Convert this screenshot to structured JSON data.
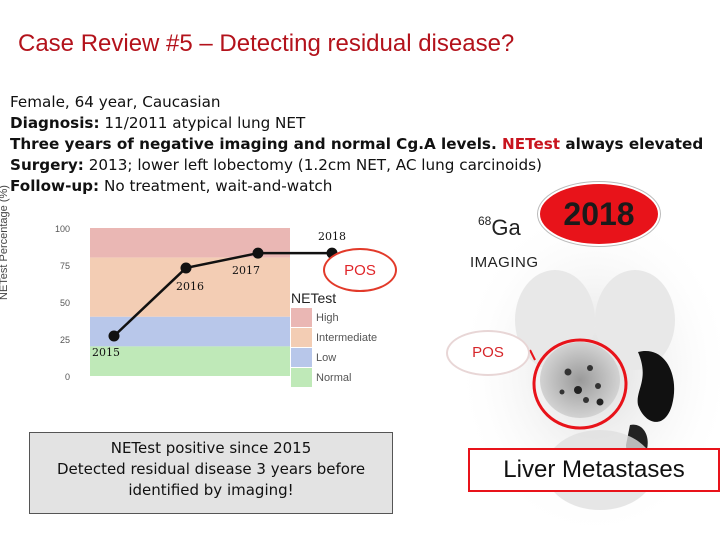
{
  "slide": {
    "title": "Case Review #5 – Detecting residual disease?",
    "facts": {
      "line1": "Female, 64 year, Caucasian",
      "line2_label": "Diagnosis:",
      "line2_value": " 11/2011 atypical lung NET",
      "line3_pre": "Three years of negative imaging and normal Cg.A levels. ",
      "line3_red": "NETest",
      "line3_post": " always elevated",
      "line4_label": "Surgery:",
      "line4_value": " 2013; lower left lobectomy (1.2cm NET, AC lung carcinoids)",
      "line5_label": "Follow-up:",
      "line5_value": " No treatment, wait-and-watch"
    },
    "summary": {
      "line1": "NETest positive since 2015",
      "line2": "Detected residual disease 3 years before",
      "line3": "identified by imaging!"
    }
  },
  "chart_data": {
    "type": "line",
    "ylabel": "NETest Percentage (%)",
    "ylim": [
      0,
      100
    ],
    "yticks": [
      0,
      25,
      50,
      75,
      100
    ],
    "points": [
      {
        "label": "2015",
        "value": 27
      },
      {
        "label": "2016",
        "value": 73
      },
      {
        "label": "2017",
        "value": 83
      },
      {
        "label": "2018",
        "value": 83
      }
    ],
    "bands": [
      {
        "name": "High",
        "from": 80,
        "to": 100,
        "color": "#eab7b4"
      },
      {
        "name": "Intermediate",
        "from": 40,
        "to": 80,
        "color": "#f3cdb4"
      },
      {
        "name": "Low",
        "from": 20,
        "to": 40,
        "color": "#b8c7ea"
      },
      {
        "name": "Normal",
        "from": 0,
        "to": 20,
        "color": "#bfe9b8"
      }
    ],
    "legend_title": "NETest",
    "annotation": "POS"
  },
  "imaging": {
    "year": "2018",
    "tracer_mass": "68",
    "tracer_symbol": "Ga",
    "label": "IMAGING",
    "result": "POS",
    "finding": "Liver Metastases"
  },
  "colors": {
    "title": "#b3121b",
    "accent_red": "#e8131a"
  }
}
